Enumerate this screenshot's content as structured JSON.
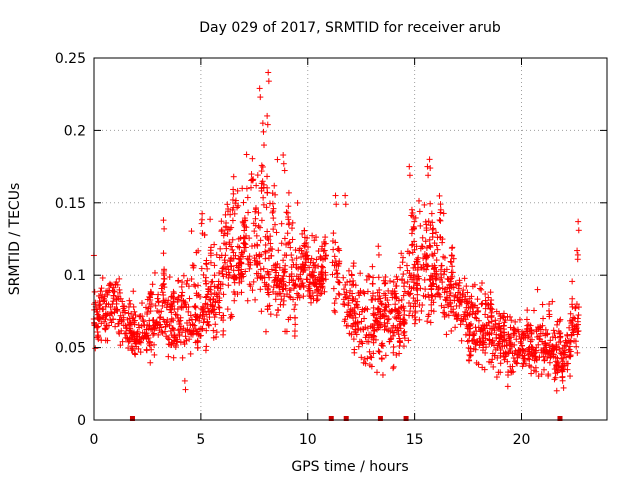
{
  "chart_data": {
    "type": "scatter",
    "title": "Day 029 of 2017, SRMTID for receiver arub",
    "xlabel": "GPS time / hours",
    "ylabel": "SRMTID / TECUs",
    "xlim": [
      0,
      24
    ],
    "ylim": [
      0,
      0.25
    ],
    "xticks": [
      0,
      5,
      10,
      15,
      20
    ],
    "xtick_labels": [
      "0",
      "5",
      "10",
      "15",
      "20"
    ],
    "yticks": [
      0,
      0.05,
      0.1,
      0.15,
      0.2,
      0.25
    ],
    "ytick_labels": [
      "0",
      "0.05",
      "0.1",
      "0.15",
      "0.2",
      "0.25"
    ],
    "grid": true,
    "marker": "+",
    "color": "#ff0000",
    "zero_markers_x": [
      1.8,
      11.1,
      11.8,
      13.4,
      14.6,
      21.8
    ],
    "envelope": [
      {
        "x": 0.0,
        "lo": 0.045,
        "mid": 0.07,
        "hi": 0.095
      },
      {
        "x": 1.0,
        "lo": 0.05,
        "mid": 0.085,
        "hi": 0.115
      },
      {
        "x": 1.6,
        "lo": 0.035,
        "mid": 0.065,
        "hi": 0.11
      },
      {
        "x": 2.0,
        "lo": 0.04,
        "mid": 0.055,
        "hi": 0.075
      },
      {
        "x": 3.0,
        "lo": 0.045,
        "mid": 0.07,
        "hi": 0.125
      },
      {
        "x": 4.0,
        "lo": 0.03,
        "mid": 0.065,
        "hi": 0.11
      },
      {
        "x": 5.0,
        "lo": 0.04,
        "mid": 0.07,
        "hi": 0.16
      },
      {
        "x": 6.0,
        "lo": 0.055,
        "mid": 0.1,
        "hi": 0.17
      },
      {
        "x": 7.0,
        "lo": 0.06,
        "mid": 0.12,
        "hi": 0.2
      },
      {
        "x": 7.8,
        "lo": 0.055,
        "mid": 0.12,
        "hi": 0.24
      },
      {
        "x": 9.0,
        "lo": 0.05,
        "mid": 0.095,
        "hi": 0.18
      },
      {
        "x": 10.0,
        "lo": 0.065,
        "mid": 0.105,
        "hi": 0.16
      },
      {
        "x": 10.5,
        "lo": 0.075,
        "mid": 0.1,
        "hi": 0.13
      },
      {
        "x": 11.0,
        "lo": 0.07,
        "mid": 0.11,
        "hi": 0.155
      },
      {
        "x": 12.0,
        "lo": 0.04,
        "mid": 0.075,
        "hi": 0.11
      },
      {
        "x": 13.0,
        "lo": 0.025,
        "mid": 0.065,
        "hi": 0.12
      },
      {
        "x": 14.0,
        "lo": 0.035,
        "mid": 0.075,
        "hi": 0.11
      },
      {
        "x": 15.0,
        "lo": 0.055,
        "mid": 0.1,
        "hi": 0.17
      },
      {
        "x": 16.0,
        "lo": 0.055,
        "mid": 0.1,
        "hi": 0.18
      },
      {
        "x": 17.0,
        "lo": 0.045,
        "mid": 0.08,
        "hi": 0.11
      },
      {
        "x": 18.0,
        "lo": 0.02,
        "mid": 0.065,
        "hi": 0.1
      },
      {
        "x": 19.0,
        "lo": 0.02,
        "mid": 0.055,
        "hi": 0.085
      },
      {
        "x": 20.0,
        "lo": 0.03,
        "mid": 0.05,
        "hi": 0.075
      },
      {
        "x": 21.0,
        "lo": 0.025,
        "mid": 0.05,
        "hi": 0.1
      },
      {
        "x": 22.0,
        "lo": 0.02,
        "mid": 0.045,
        "hi": 0.075
      },
      {
        "x": 22.7,
        "lo": 0.04,
        "mid": 0.075,
        "hi": 0.135
      }
    ],
    "gaps": [
      [
        10.85,
        11.15
      ],
      [
        11.5,
        11.65
      ],
      [
        14.55,
        14.65
      ]
    ],
    "spikes": [
      {
        "x": 7.75,
        "y": 0.229
      },
      {
        "x": 8.15,
        "y": 0.24
      },
      {
        "x": 8.1,
        "y": 0.21
      },
      {
        "x": 7.9,
        "y": 0.205
      },
      {
        "x": 8.85,
        "y": 0.183
      },
      {
        "x": 15.7,
        "y": 0.18
      },
      {
        "x": 15.6,
        "y": 0.175
      },
      {
        "x": 14.75,
        "y": 0.175
      },
      {
        "x": 11.3,
        "y": 0.155
      },
      {
        "x": 11.75,
        "y": 0.155
      },
      {
        "x": 22.65,
        "y": 0.137
      },
      {
        "x": 22.6,
        "y": 0.117
      },
      {
        "x": 13.3,
        "y": 0.12
      },
      {
        "x": 4.25,
        "y": 0.027
      },
      {
        "x": 3.25,
        "y": 0.138
      }
    ]
  }
}
